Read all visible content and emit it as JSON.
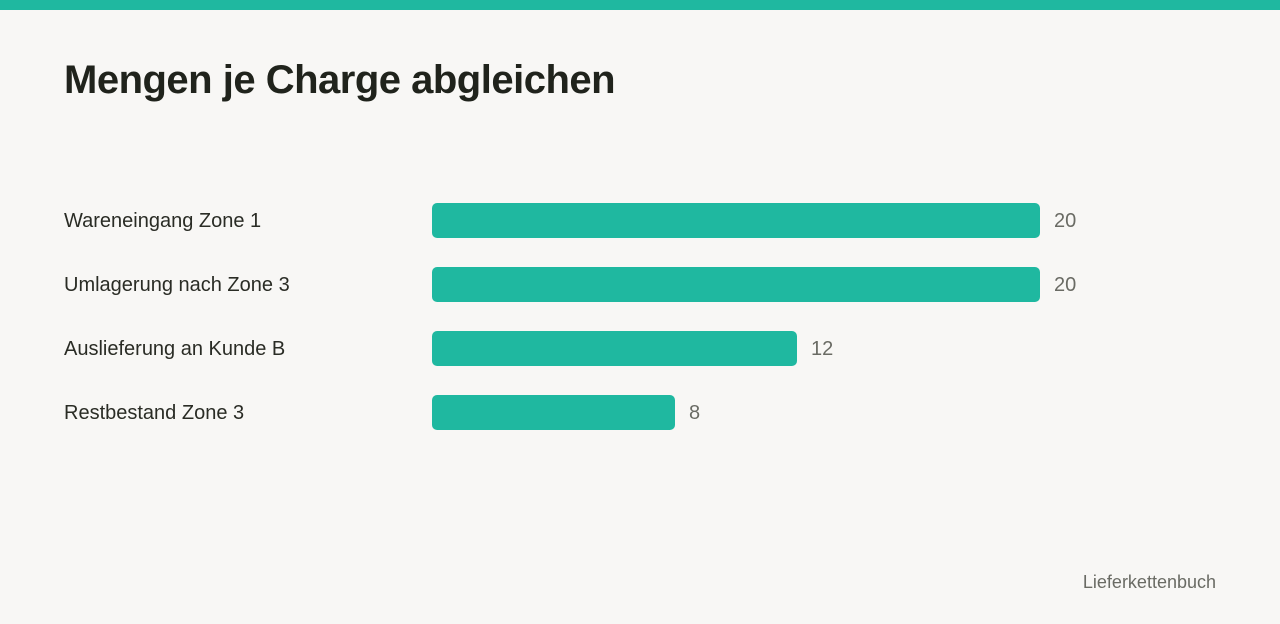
{
  "header": {
    "title": "Mengen je Charge abgleichen"
  },
  "colors": {
    "accent": "#1fb8a0"
  },
  "chart_data": {
    "type": "bar",
    "orientation": "horizontal",
    "title": "Mengen je Charge abgleichen",
    "categories": [
      "Wareneingang Zone 1",
      "Umlagerung nach Zone 3",
      "Auslieferung an Kunde B",
      "Restbestand Zone 3"
    ],
    "values": [
      20,
      20,
      12,
      8
    ],
    "xlabel": "",
    "ylabel": "",
    "xlim": [
      0,
      20
    ],
    "grid": false,
    "legend": "none"
  },
  "footer": {
    "brand": "Lieferkettenbuch"
  }
}
